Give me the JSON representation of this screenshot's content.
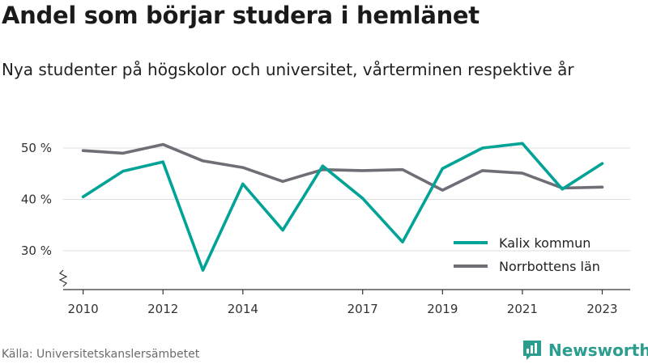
{
  "title": "Andel som börjar studera i hemlänet",
  "subtitle": "Nya studenter på högskolor och universitet, vårterminen respektive år",
  "source": "Källa: Universitetskanslersämbetet",
  "brand": {
    "name": "Newsworthy",
    "color": "#2a9d8f",
    "icon": "newsworthy-chart-icon"
  },
  "chart_data": {
    "type": "line",
    "x": [
      2010,
      2011,
      2012,
      2013,
      2014,
      2015,
      2016,
      2017,
      2018,
      2019,
      2020,
      2021,
      2022,
      2023
    ],
    "x_tick_labels": [
      "2010",
      "2012",
      "2014",
      "2017",
      "2019",
      "2021",
      "2023"
    ],
    "x_tick_values": [
      2010,
      2012,
      2014,
      2017,
      2019,
      2021,
      2023
    ],
    "y_tick_labels": [
      "30 %",
      "40 %",
      "50 %"
    ],
    "y_tick_values": [
      30,
      40,
      50
    ],
    "ylim": [
      22,
      52
    ],
    "axis_break": true,
    "grid": true,
    "legend_position": "bottom-right",
    "series": [
      {
        "name": "Kalix kommun",
        "color": "#00a396",
        "values": [
          40.5,
          45.5,
          47.3,
          26.2,
          43.0,
          34.0,
          46.5,
          40.2,
          31.7,
          46.0,
          50.0,
          50.9,
          42.0,
          47.0
        ]
      },
      {
        "name": "Norrbottens län",
        "color": "#6f6d75",
        "values": [
          49.5,
          49.0,
          50.7,
          47.5,
          46.2,
          43.5,
          45.8,
          45.6,
          45.8,
          41.8,
          45.6,
          45.1,
          42.2,
          42.4
        ]
      }
    ]
  }
}
